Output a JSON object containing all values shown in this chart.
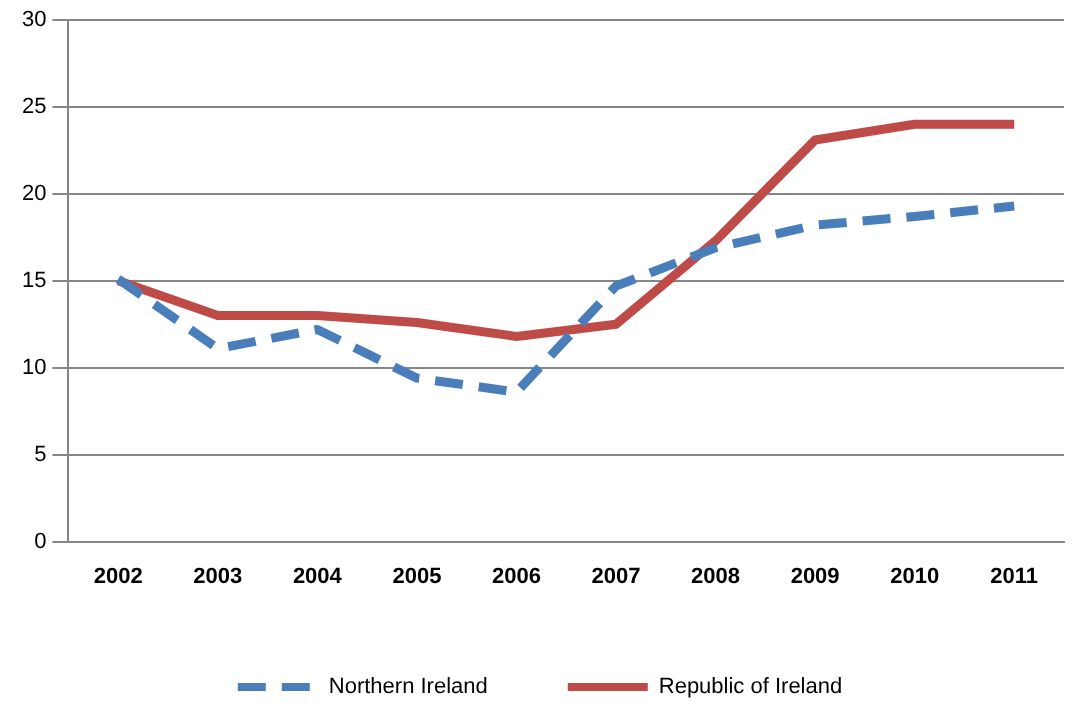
{
  "chart_data": {
    "type": "line",
    "categories": [
      "2002",
      "2003",
      "2004",
      "2005",
      "2006",
      "2007",
      "2008",
      "2009",
      "2010",
      "2011"
    ],
    "series": [
      {
        "name": "Northern Ireland",
        "color": "#4a7ebb",
        "line_style": "dashed",
        "values": [
          15.1,
          11.1,
          12.2,
          9.4,
          8.6,
          14.7,
          16.9,
          18.2,
          18.7,
          19.3
        ]
      },
      {
        "name": "Republic of Ireland",
        "color": "#be4b48",
        "line_style": "solid",
        "values": [
          15.0,
          13.0,
          13.0,
          12.6,
          11.8,
          12.5,
          17.3,
          23.1,
          24.0,
          24.0
        ]
      }
    ],
    "ylim": [
      0,
      30
    ],
    "yticks": [
      0,
      5,
      10,
      15,
      20,
      25,
      30
    ],
    "grid": "y",
    "legend": "bottom",
    "marker": "none"
  }
}
